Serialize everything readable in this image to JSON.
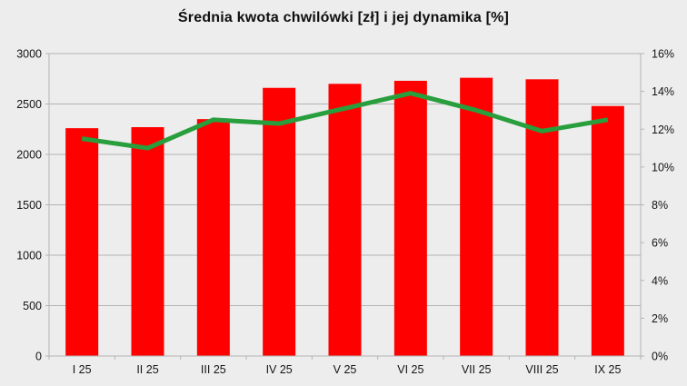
{
  "chart_data": {
    "type": "combo",
    "title": "Średnia kwota chwilówki [zł] i jej dynamika [%]",
    "categories": [
      "I 25",
      "II 25",
      "III 25",
      "IV 25",
      "V 25",
      "VI 25",
      "VII 25",
      "VIII 25",
      "IX 25"
    ],
    "series": [
      {
        "name": "Średnia kwota chwilówki [zł]",
        "type": "bar",
        "axis": "left",
        "color": "#ff0000",
        "values": [
          2260,
          2270,
          2350,
          2660,
          2700,
          2730,
          2760,
          2745,
          2480
        ]
      },
      {
        "name": "dynamika [%]",
        "type": "line",
        "axis": "right",
        "color": "#289e3c",
        "values": [
          11.5,
          11.0,
          12.5,
          12.3,
          13.1,
          13.9,
          13.0,
          11.9,
          12.5
        ]
      }
    ],
    "left_axis": {
      "min": 0,
      "max": 3000,
      "step": 500,
      "tick_labels": [
        "0",
        "500",
        "1000",
        "1500",
        "2000",
        "2500",
        "3000"
      ]
    },
    "right_axis": {
      "min": 0,
      "max": 16,
      "step": 2,
      "tick_labels": [
        "0%",
        "2%",
        "4%",
        "6%",
        "8%",
        "10%",
        "12%",
        "14%",
        "16%"
      ]
    },
    "grid": true,
    "legend": "none",
    "colors": {
      "background": "#ededed",
      "gridline": "#b3b3b3",
      "axis": "#b3b3b3",
      "text": "#141414"
    }
  }
}
